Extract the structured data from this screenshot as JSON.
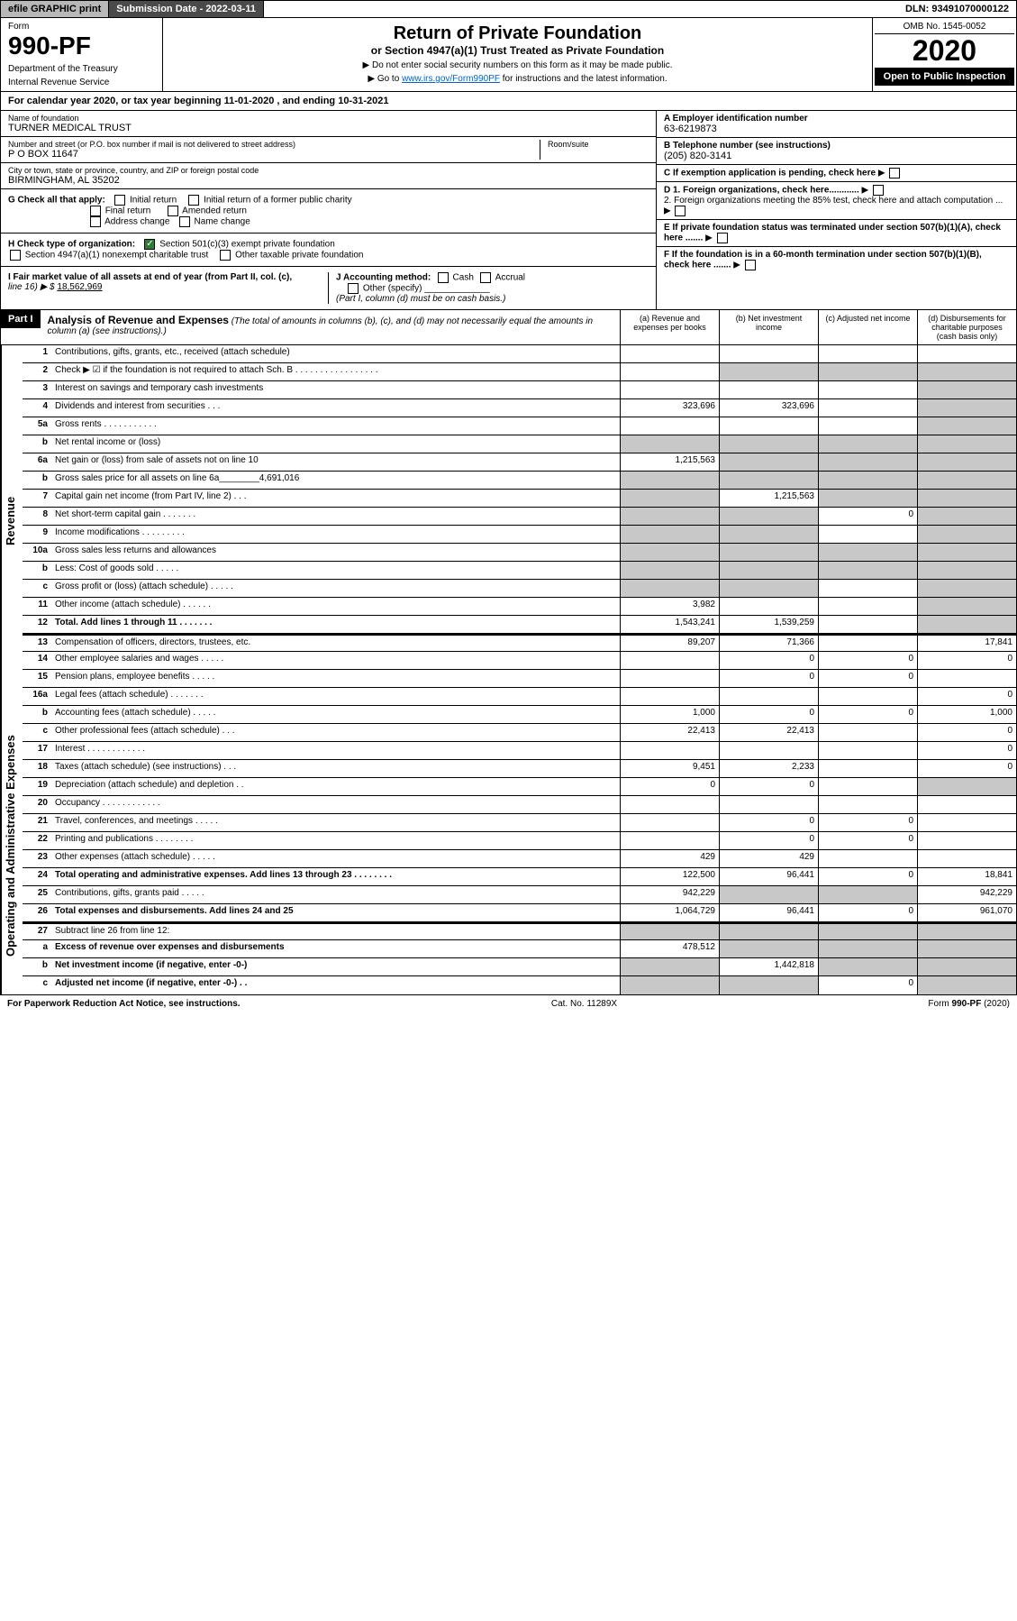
{
  "topbar": {
    "efile": "efile GRAPHIC print",
    "sub_date_label": "Submission Date - 2022-03-11",
    "dln": "DLN: 93491070000122"
  },
  "header": {
    "form_label": "Form",
    "form_num": "990-PF",
    "dept1": "Department of the Treasury",
    "dept2": "Internal Revenue Service",
    "title": "Return of Private Foundation",
    "subtitle": "or Section 4947(a)(1) Trust Treated as Private Foundation",
    "instr1": "▶ Do not enter social security numbers on this form as it may be made public.",
    "instr2_pre": "▶ Go to ",
    "instr2_link": "www.irs.gov/Form990PF",
    "instr2_post": " for instructions and the latest information.",
    "omb": "OMB No. 1545-0052",
    "year": "2020",
    "open_public": "Open to Public Inspection"
  },
  "cal_year": "For calendar year 2020, or tax year beginning 11-01-2020              , and ending 10-31-2021",
  "info": {
    "name_label": "Name of foundation",
    "name": "TURNER MEDICAL TRUST",
    "addr_label": "Number and street (or P.O. box number if mail is not delivered to street address)",
    "addr": "P O BOX 11647",
    "room_label": "Room/suite",
    "city_label": "City or town, state or province, country, and ZIP or foreign postal code",
    "city": "BIRMINGHAM, AL  35202",
    "ein_label": "A Employer identification number",
    "ein": "63-6219873",
    "phone_label": "B Telephone number (see instructions)",
    "phone": "(205) 820-3141",
    "c_label": "C If exemption application is pending, check here",
    "d1": "D 1. Foreign organizations, check here............",
    "d2": "2. Foreign organizations meeting the 85% test, check here and attach computation ...",
    "e_label": "E If private foundation status was terminated under section 507(b)(1)(A), check here .......",
    "f_label": "F If the foundation is in a 60-month termination under section 507(b)(1)(B), check here .......",
    "g_label": "G Check all that apply:",
    "g_initial": "Initial return",
    "g_initial_former": "Initial return of a former public charity",
    "g_final": "Final return",
    "g_amended": "Amended return",
    "g_addr": "Address change",
    "g_name": "Name change",
    "h_label": "H Check type of organization:",
    "h_501c3": "Section 501(c)(3) exempt private foundation",
    "h_4947": "Section 4947(a)(1) nonexempt charitable trust",
    "h_other": "Other taxable private foundation",
    "i_label": "I Fair market value of all assets at end of year (from Part II, col. (c),",
    "i_line": "line 16) ▶ $",
    "i_value": "18,562,969",
    "j_label": "J Accounting method:",
    "j_cash": "Cash",
    "j_accrual": "Accrual",
    "j_other": "Other (specify)",
    "j_note": "(Part I, column (d) must be on cash basis.)"
  },
  "part1": {
    "label": "Part I",
    "title": "Analysis of Revenue and Expenses",
    "desc": "(The total of amounts in columns (b), (c), and (d) may not necessarily equal the amounts in column (a) (see instructions).)",
    "col_a": "(a) Revenue and expenses per books",
    "col_b": "(b) Net investment income",
    "col_c": "(c) Adjusted net income",
    "col_d": "(d) Disbursements for charitable purposes (cash basis only)"
  },
  "side_labels": {
    "revenue": "Revenue",
    "expenses": "Operating and Administrative Expenses"
  },
  "rows": [
    {
      "n": "1",
      "label": "Contributions, gifts, grants, etc., received (attach schedule)",
      "a": "",
      "b": "",
      "c": "",
      "d": "",
      "gray_c": false,
      "gray_d": true
    },
    {
      "n": "2",
      "label": "Check ▶ ☑ if the foundation is not required to attach Sch. B    . . . . . . . . . . . . . . . . .",
      "a": "",
      "b": "gray",
      "c": "gray",
      "d": "gray"
    },
    {
      "n": "3",
      "label": "Interest on savings and temporary cash investments",
      "a": "",
      "b": "",
      "c": "",
      "d": "gray"
    },
    {
      "n": "4",
      "label": "Dividends and interest from securities    . . .",
      "a": "323,696",
      "b": "323,696",
      "c": "",
      "d": "gray"
    },
    {
      "n": "5a",
      "label": "Gross rents    . . . . . . . . . . .",
      "a": "",
      "b": "",
      "c": "",
      "d": "gray"
    },
    {
      "n": "b",
      "label": "Net rental income or (loss)",
      "a": "gray",
      "b": "gray",
      "c": "gray",
      "d": "gray"
    },
    {
      "n": "6a",
      "label": "Net gain or (loss) from sale of assets not on line 10",
      "a": "1,215,563",
      "b": "gray",
      "c": "gray",
      "d": "gray"
    },
    {
      "n": "b",
      "label": "Gross sales price for all assets on line 6a________4,691,016",
      "a": "gray",
      "b": "gray",
      "c": "gray",
      "d": "gray"
    },
    {
      "n": "7",
      "label": "Capital gain net income (from Part IV, line 2)    . . .",
      "a": "gray",
      "b": "1,215,563",
      "c": "gray",
      "d": "gray"
    },
    {
      "n": "8",
      "label": "Net short-term capital gain    . . . . . . .",
      "a": "gray",
      "b": "gray",
      "c": "0",
      "d": "gray"
    },
    {
      "n": "9",
      "label": "Income modifications    . . . . . . . . .",
      "a": "gray",
      "b": "gray",
      "c": "",
      "d": "gray"
    },
    {
      "n": "10a",
      "label": "Gross sales less returns and allowances",
      "a": "gray",
      "b": "gray",
      "c": "gray",
      "d": "gray"
    },
    {
      "n": "b",
      "label": "Less: Cost of goods sold    . . . . .",
      "a": "gray",
      "b": "gray",
      "c": "gray",
      "d": "gray"
    },
    {
      "n": "c",
      "label": "Gross profit or (loss) (attach schedule)    . . . . .",
      "a": "gray",
      "b": "gray",
      "c": "",
      "d": "gray"
    },
    {
      "n": "11",
      "label": "Other income (attach schedule)    . . . . . .",
      "a": "3,982",
      "b": "",
      "c": "",
      "d": "gray"
    },
    {
      "n": "12",
      "label": "Total. Add lines 1 through 11    . . . . . . .",
      "a": "1,543,241",
      "b": "1,539,259",
      "c": "",
      "d": "gray",
      "bold": true
    },
    {
      "n": "13",
      "label": "Compensation of officers, directors, trustees, etc.",
      "a": "89,207",
      "b": "71,366",
      "c": "",
      "d": "17,841",
      "break": true
    },
    {
      "n": "14",
      "label": "Other employee salaries and wages    . . . . .",
      "a": "",
      "b": "0",
      "c": "0",
      "d": "0"
    },
    {
      "n": "15",
      "label": "Pension plans, employee benefits    . . . . .",
      "a": "",
      "b": "0",
      "c": "0",
      "d": ""
    },
    {
      "n": "16a",
      "label": "Legal fees (attach schedule)    . . . . . . .",
      "a": "",
      "b": "",
      "c": "",
      "d": "0"
    },
    {
      "n": "b",
      "label": "Accounting fees (attach schedule)    . . . . .",
      "a": "1,000",
      "b": "0",
      "c": "0",
      "d": "1,000"
    },
    {
      "n": "c",
      "label": "Other professional fees (attach schedule)    . . .",
      "a": "22,413",
      "b": "22,413",
      "c": "",
      "d": "0"
    },
    {
      "n": "17",
      "label": "Interest    . . . . . . . . . . . .",
      "a": "",
      "b": "",
      "c": "",
      "d": "0"
    },
    {
      "n": "18",
      "label": "Taxes (attach schedule) (see instructions)    . . .",
      "a": "9,451",
      "b": "2,233",
      "c": "",
      "d": "0"
    },
    {
      "n": "19",
      "label": "Depreciation (attach schedule) and depletion    . .",
      "a": "0",
      "b": "0",
      "c": "",
      "d": "gray"
    },
    {
      "n": "20",
      "label": "Occupancy    . . . . . . . . . . . .",
      "a": "",
      "b": "",
      "c": "",
      "d": ""
    },
    {
      "n": "21",
      "label": "Travel, conferences, and meetings    . . . . .",
      "a": "",
      "b": "0",
      "c": "0",
      "d": ""
    },
    {
      "n": "22",
      "label": "Printing and publications    . . . . . . . .",
      "a": "",
      "b": "0",
      "c": "0",
      "d": ""
    },
    {
      "n": "23",
      "label": "Other expenses (attach schedule)    . . . . .",
      "a": "429",
      "b": "429",
      "c": "",
      "d": ""
    },
    {
      "n": "24",
      "label": "Total operating and administrative expenses. Add lines 13 through 23    . . . . . . . .",
      "a": "122,500",
      "b": "96,441",
      "c": "0",
      "d": "18,841",
      "bold": true
    },
    {
      "n": "25",
      "label": "Contributions, gifts, grants paid    . . . . .",
      "a": "942,229",
      "b": "gray",
      "c": "gray",
      "d": "942,229"
    },
    {
      "n": "26",
      "label": "Total expenses and disbursements. Add lines 24 and 25",
      "a": "1,064,729",
      "b": "96,441",
      "c": "0",
      "d": "961,070",
      "bold": true
    },
    {
      "n": "27",
      "label": "Subtract line 26 from line 12:",
      "a": "gray",
      "b": "gray",
      "c": "gray",
      "d": "gray",
      "break": true
    },
    {
      "n": "a",
      "label": "Excess of revenue over expenses and disbursements",
      "a": "478,512",
      "b": "gray",
      "c": "gray",
      "d": "gray",
      "bold": true
    },
    {
      "n": "b",
      "label": "Net investment income (if negative, enter -0-)",
      "a": "gray",
      "b": "1,442,818",
      "c": "gray",
      "d": "gray",
      "bold": true
    },
    {
      "n": "c",
      "label": "Adjusted net income (if negative, enter -0-)    . .",
      "a": "gray",
      "b": "gray",
      "c": "0",
      "d": "gray",
      "bold": true
    }
  ],
  "footer": {
    "left": "For Paperwork Reduction Act Notice, see instructions.",
    "center": "Cat. No. 11289X",
    "right": "Form 990-PF (2020)"
  }
}
